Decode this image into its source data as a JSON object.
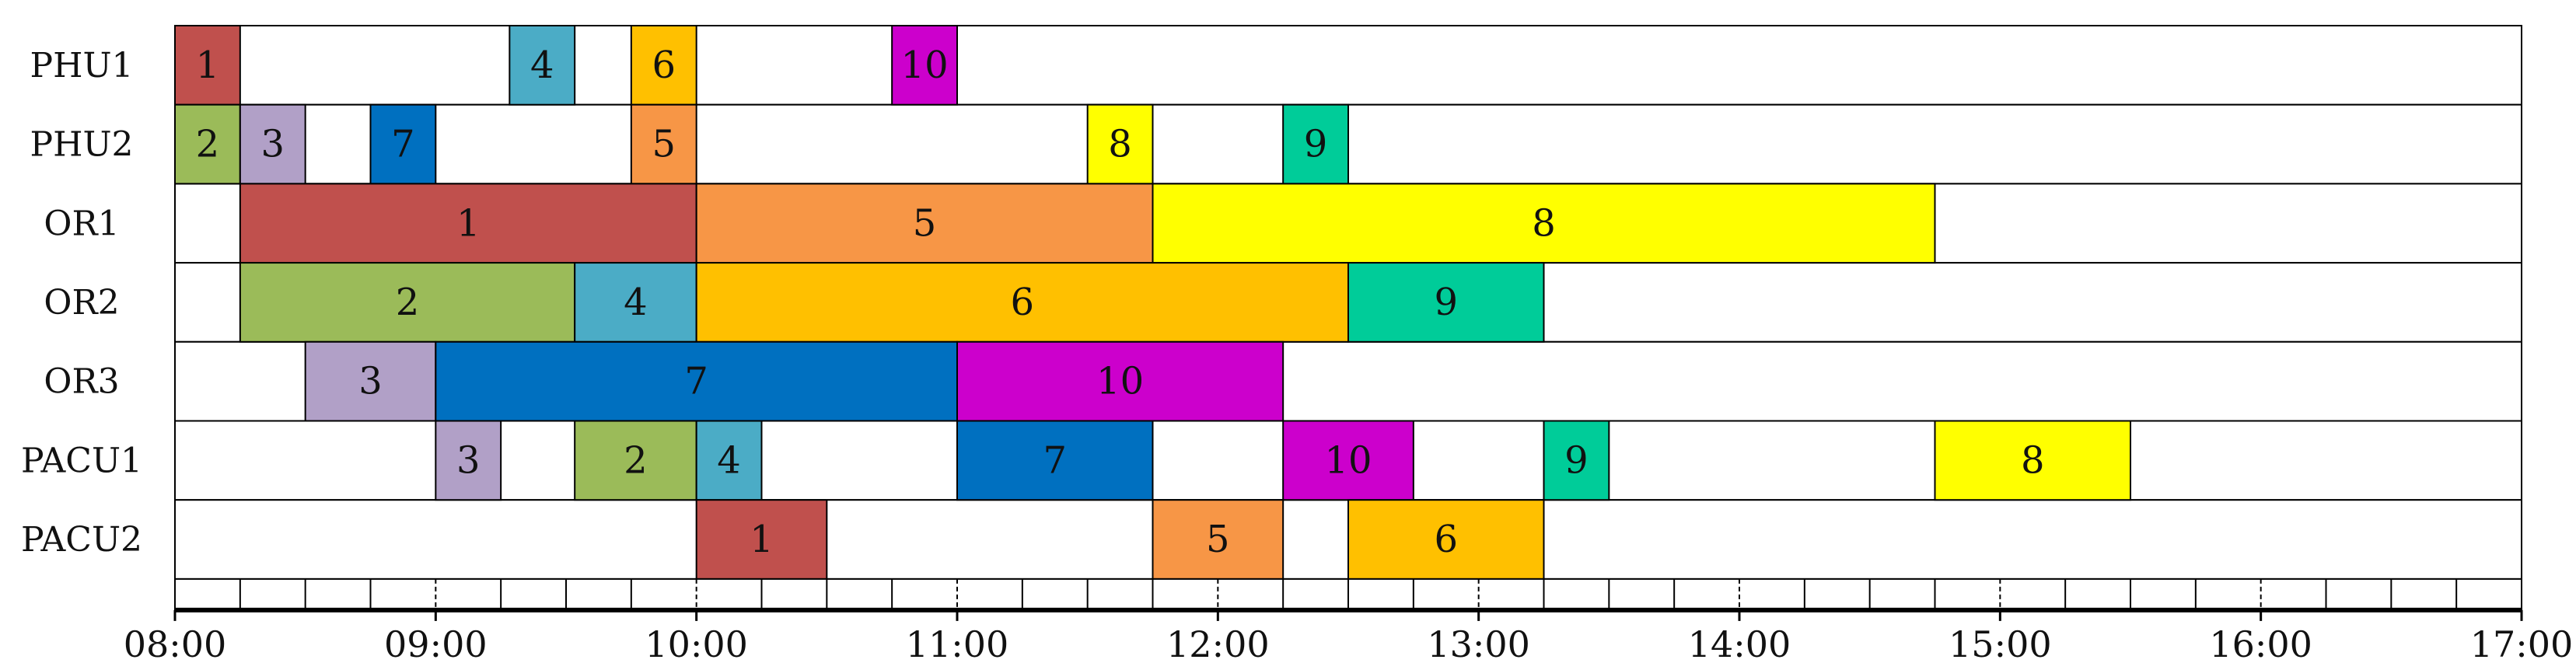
{
  "chart_data": {
    "type": "gantt",
    "title": "",
    "xlabel": "",
    "ylabel": "",
    "x_range": [
      "08:00",
      "17:00"
    ],
    "x_ticks": [
      "08:00",
      "09:00",
      "10:00",
      "11:00",
      "12:00",
      "13:00",
      "14:00",
      "15:00",
      "16:00",
      "17:00"
    ],
    "minor_tick_minutes": 15,
    "rows": [
      "PHU1",
      "PHU2",
      "OR1",
      "OR2",
      "OR3",
      "PACU1",
      "PACU2"
    ],
    "colors": {
      "1": "#c0504d",
      "2": "#9bbb59",
      "3": "#b1a0c7",
      "4": "#4bacc6",
      "5": "#f79646",
      "6": "#ffc000",
      "7": "#0070c0",
      "8": "#ffff00",
      "9": "#00cc99",
      "10": "#cc00cc"
    },
    "tasks": [
      {
        "row": "PHU1",
        "label": "1",
        "start": "08:00",
        "end": "08:15"
      },
      {
        "row": "PHU1",
        "label": "4",
        "start": "09:17",
        "end": "09:32"
      },
      {
        "row": "PHU1",
        "label": "6",
        "start": "09:45",
        "end": "10:00"
      },
      {
        "row": "PHU1",
        "label": "10",
        "start": "10:45",
        "end": "11:00"
      },
      {
        "row": "PHU2",
        "label": "2",
        "start": "08:00",
        "end": "08:15"
      },
      {
        "row": "PHU2",
        "label": "3",
        "start": "08:15",
        "end": "08:30"
      },
      {
        "row": "PHU2",
        "label": "7",
        "start": "08:45",
        "end": "09:00"
      },
      {
        "row": "PHU2",
        "label": "5",
        "start": "09:45",
        "end": "10:00"
      },
      {
        "row": "PHU2",
        "label": "8",
        "start": "11:30",
        "end": "11:45"
      },
      {
        "row": "PHU2",
        "label": "9",
        "start": "12:15",
        "end": "12:30"
      },
      {
        "row": "OR1",
        "label": "1",
        "start": "08:15",
        "end": "10:00"
      },
      {
        "row": "OR1",
        "label": "5",
        "start": "10:00",
        "end": "11:45"
      },
      {
        "row": "OR1",
        "label": "8",
        "start": "11:45",
        "end": "14:45"
      },
      {
        "row": "OR2",
        "label": "2",
        "start": "08:15",
        "end": "09:32"
      },
      {
        "row": "OR2",
        "label": "4",
        "start": "09:32",
        "end": "10:00"
      },
      {
        "row": "OR2",
        "label": "6",
        "start": "10:00",
        "end": "12:30"
      },
      {
        "row": "OR2",
        "label": "9",
        "start": "12:30",
        "end": "13:15"
      },
      {
        "row": "OR3",
        "label": "3",
        "start": "08:30",
        "end": "09:00"
      },
      {
        "row": "OR3",
        "label": "7",
        "start": "09:00",
        "end": "11:00"
      },
      {
        "row": "OR3",
        "label": "10",
        "start": "11:00",
        "end": "12:15"
      },
      {
        "row": "PACU1",
        "label": "3",
        "start": "09:00",
        "end": "09:15"
      },
      {
        "row": "PACU1",
        "label": "2",
        "start": "09:32",
        "end": "10:00"
      },
      {
        "row": "PACU1",
        "label": "4",
        "start": "10:00",
        "end": "10:15"
      },
      {
        "row": "PACU1",
        "label": "7",
        "start": "11:00",
        "end": "11:45"
      },
      {
        "row": "PACU1",
        "label": "10",
        "start": "12:15",
        "end": "12:45"
      },
      {
        "row": "PACU1",
        "label": "9",
        "start": "13:15",
        "end": "13:30"
      },
      {
        "row": "PACU1",
        "label": "8",
        "start": "14:45",
        "end": "15:30"
      },
      {
        "row": "PACU2",
        "label": "1",
        "start": "10:00",
        "end": "10:30"
      },
      {
        "row": "PACU2",
        "label": "5",
        "start": "11:45",
        "end": "12:15"
      },
      {
        "row": "PACU2",
        "label": "6",
        "start": "12:30",
        "end": "13:15"
      }
    ]
  }
}
